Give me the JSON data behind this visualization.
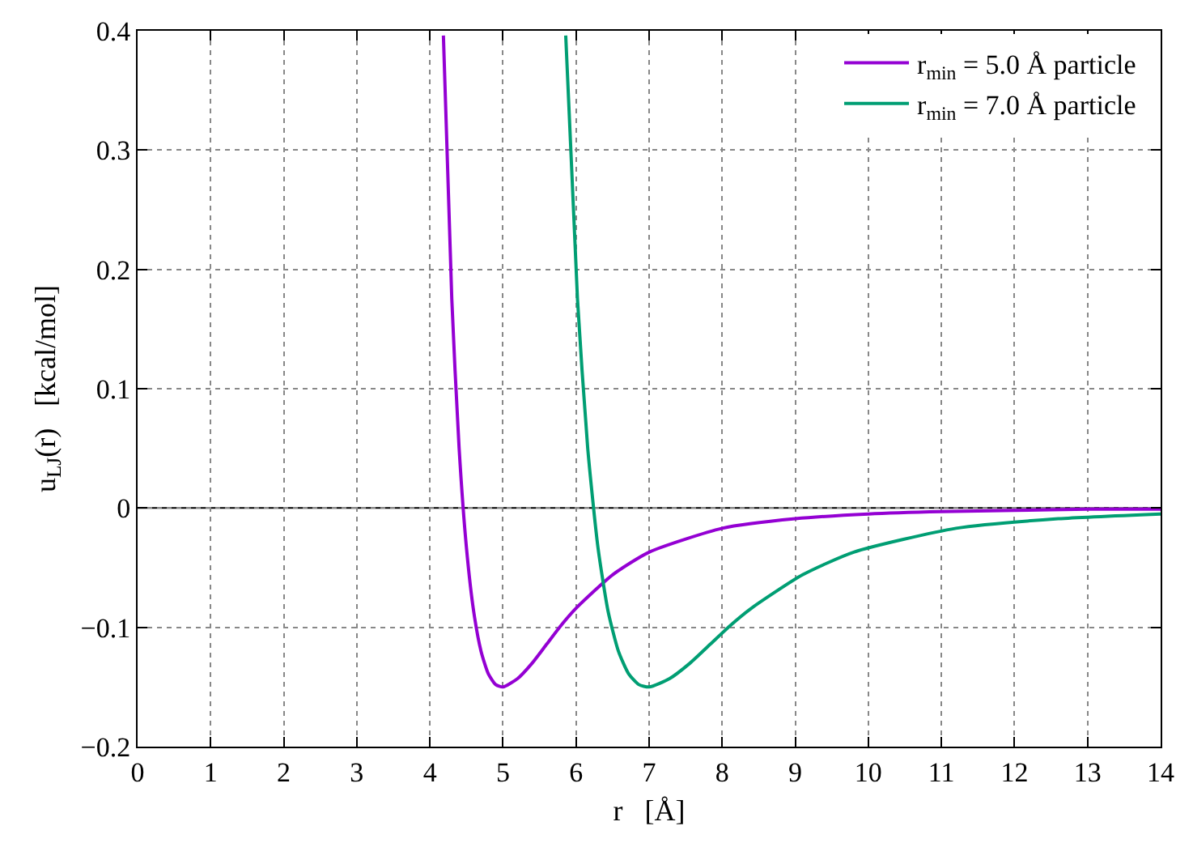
{
  "chart_data": {
    "type": "line",
    "xlabel": "r   [Å]",
    "ylabel": "u$_{LJ}$(r)   [kcal/mol]",
    "xlim": [
      0,
      14
    ],
    "xticks": [
      0,
      1,
      2,
      3,
      4,
      5,
      6,
      7,
      8,
      9,
      10,
      11,
      12,
      13,
      14
    ],
    "ylim": [
      -0.2,
      0.4
    ],
    "yticks": [
      {
        "value": -0.2,
        "label": "−0.2"
      },
      {
        "value": -0.1,
        "label": "−0.1"
      },
      0,
      0.1,
      0.2,
      0.3,
      0.4
    ],
    "grid": true,
    "legend": "top right",
    "marker": "none",
    "line_style": "solid",
    "ref_lines": [
      {
        "axis": "y",
        "value": 0,
        "color": "#000000",
        "line_style": "solid"
      }
    ],
    "series": [
      {
        "name": "r$_{min}$ = 5.0 Å particle",
        "color": "#9400d3",
        "x": [
          4.185,
          4.3,
          4.4,
          4.5,
          4.6,
          4.7,
          4.8,
          4.9,
          5.0,
          5.2,
          5.4,
          5.6,
          5.8,
          6.0,
          6.5,
          7,
          8,
          9,
          10,
          11,
          12,
          13,
          14
        ],
        "values": [
          0.396,
          0.175,
          0.05,
          -0.033,
          -0.087,
          -0.12,
          -0.139,
          -0.148,
          -0.15,
          -0.143,
          -0.13,
          -0.114,
          -0.098,
          -0.084,
          -0.056,
          -0.037,
          -0.017,
          -0.009,
          -0.005,
          -0.003,
          -0.002,
          -0.001,
          -0.001
        ]
      },
      {
        "name": "r$_{min}$ = 7.0 Å particle",
        "color": "#009e73",
        "x": [
          5.859,
          6.02,
          6.16,
          6.3,
          6.44,
          6.58,
          6.72,
          6.86,
          7.0,
          7.28,
          7.56,
          7.84,
          8.12,
          8.4,
          9.1,
          9.8,
          11.2,
          12.6,
          14
        ],
        "values": [
          0.396,
          0.175,
          0.05,
          -0.033,
          -0.087,
          -0.12,
          -0.139,
          -0.148,
          -0.15,
          -0.143,
          -0.13,
          -0.114,
          -0.098,
          -0.084,
          -0.056,
          -0.037,
          -0.017,
          -0.009,
          -0.005
        ]
      }
    ]
  }
}
